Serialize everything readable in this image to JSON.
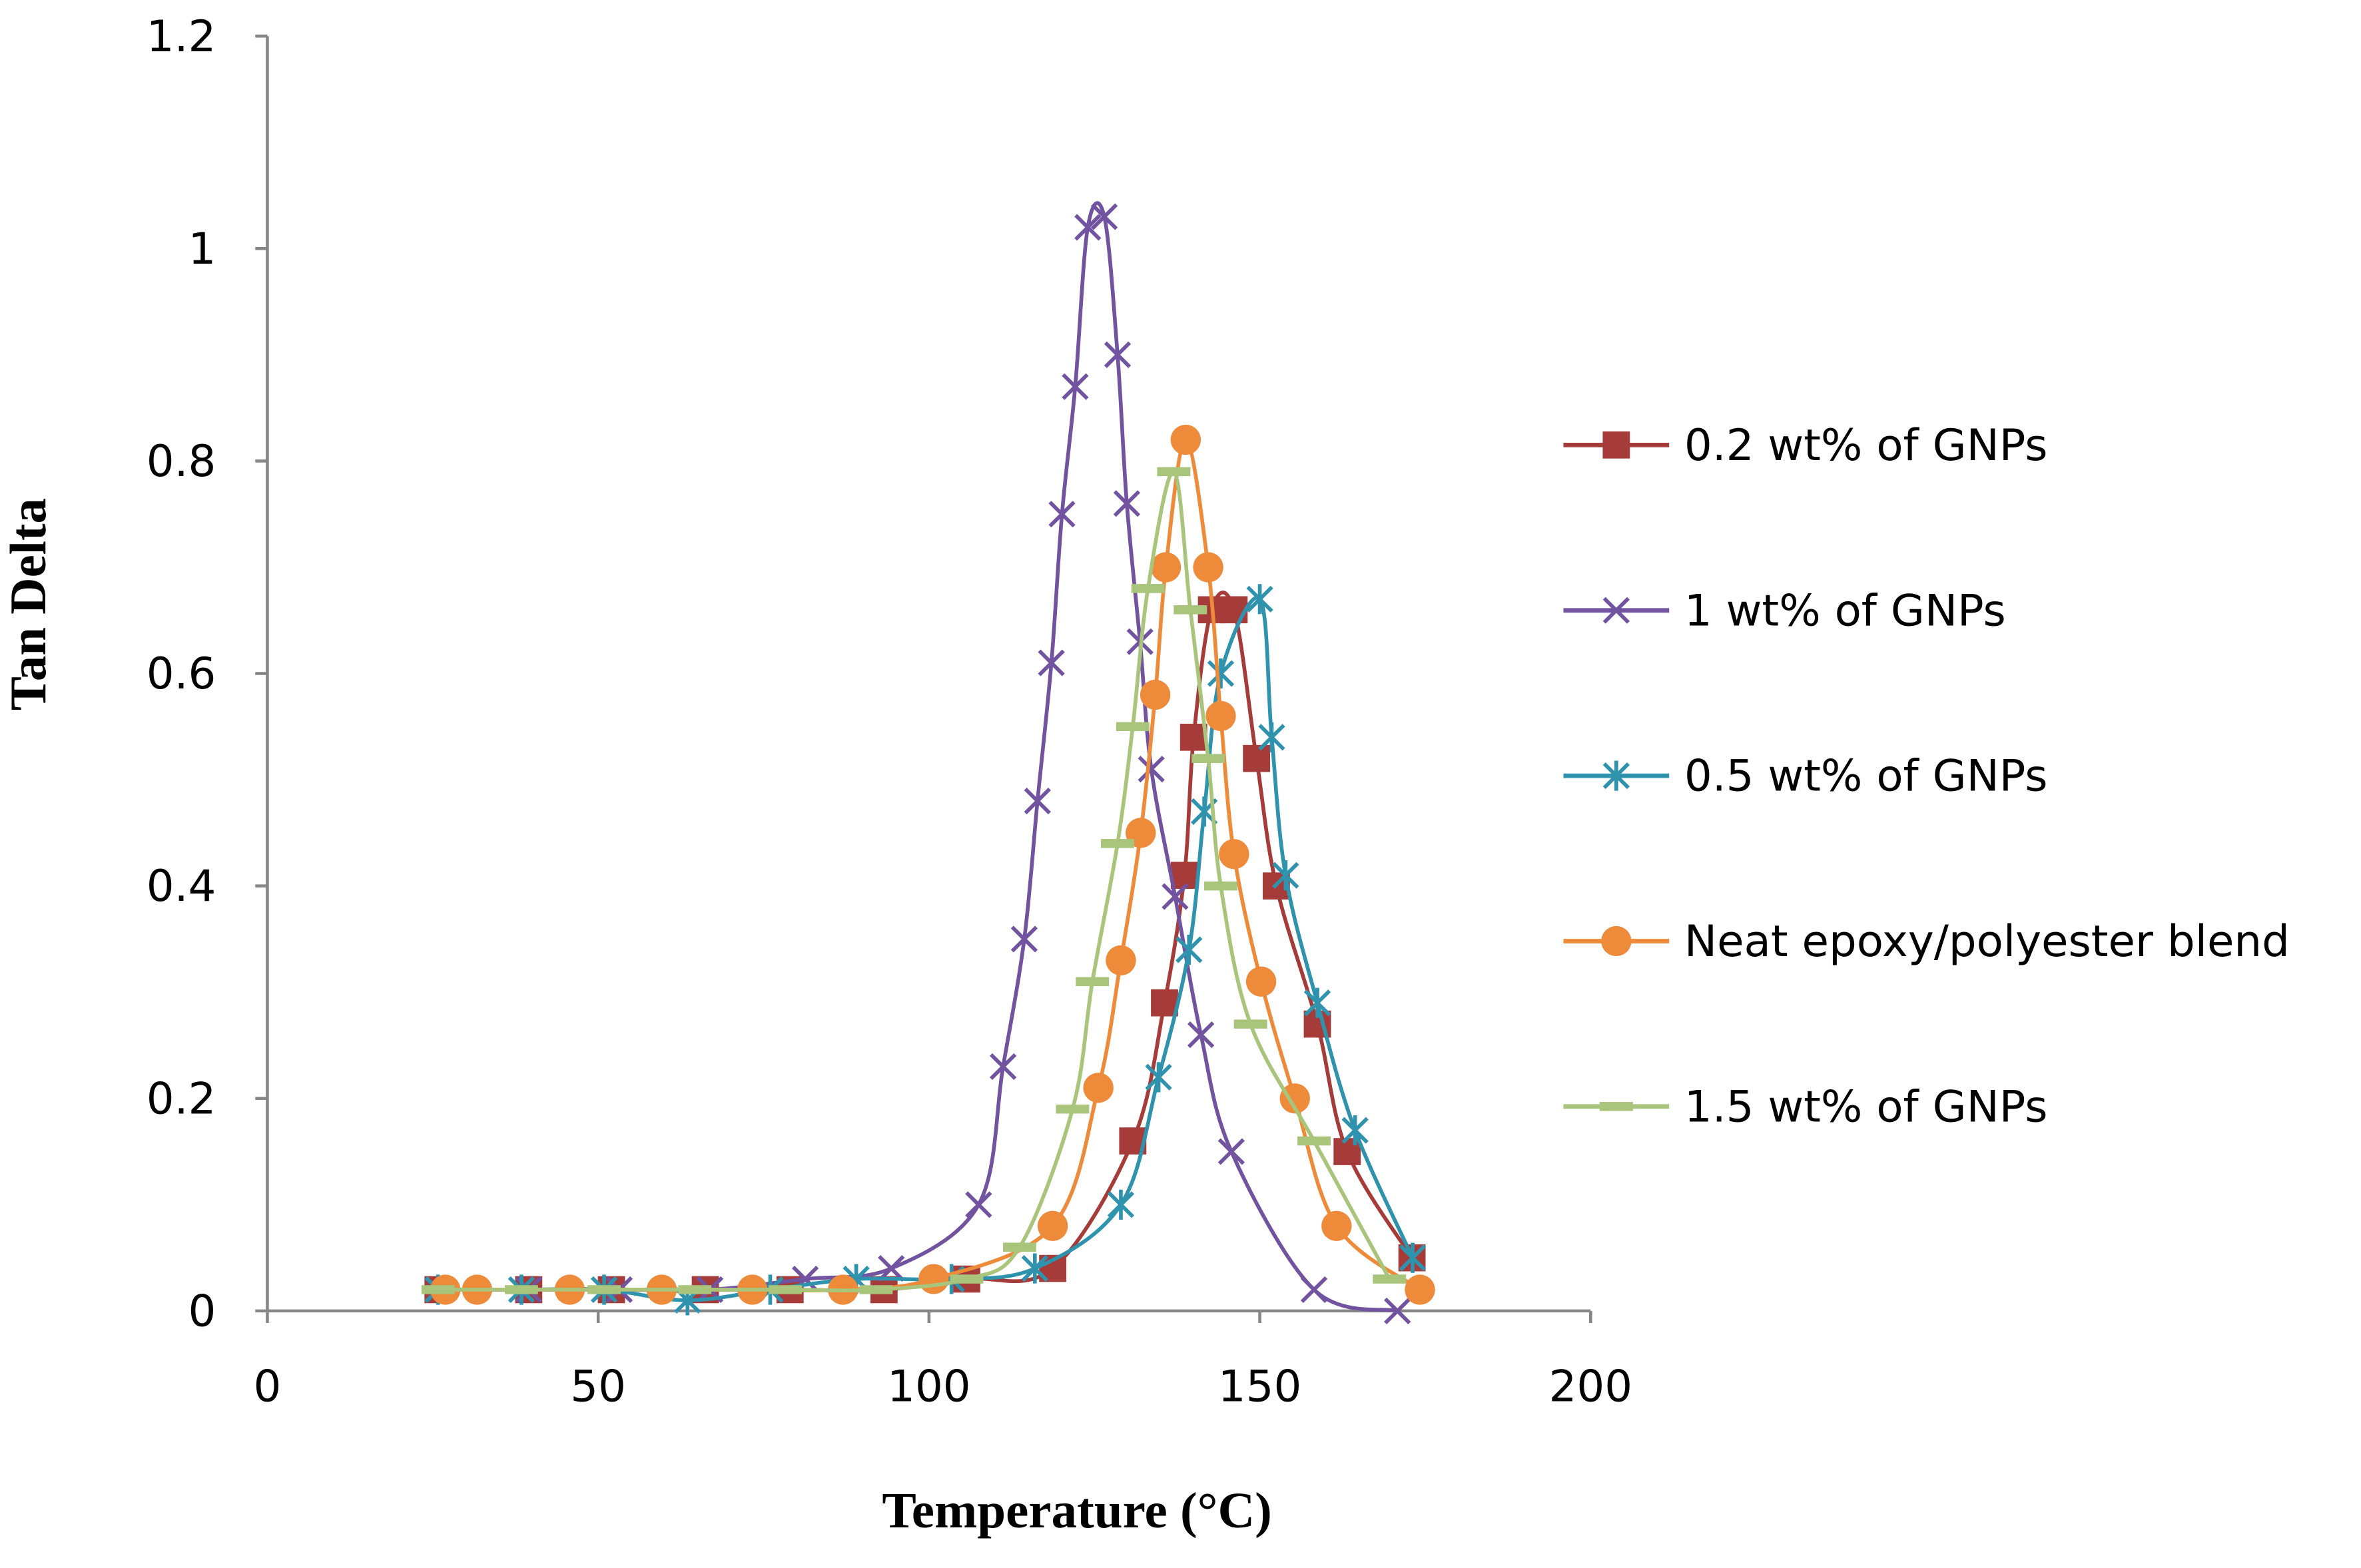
{
  "chart_data": {
    "type": "line",
    "x_label": "Temperature (°C)",
    "y_label": "Tan Delta",
    "xlim": [
      0,
      200
    ],
    "xticks": [
      0,
      50,
      100,
      150,
      200
    ],
    "ylim": [
      0,
      1.2
    ],
    "yticks": [
      0,
      0.2,
      0.4,
      0.6,
      0.8,
      1,
      1.2
    ],
    "series": [
      {
        "name": "0.2 wt% of GNPs",
        "color": "#a63c3a",
        "marker": "square",
        "x": [
          25.8,
          39.5,
          52,
          66.2,
          79,
          93.2,
          105.7,
          118.7,
          130.8,
          135.6,
          138.6,
          140,
          142.7,
          146.1,
          149.5,
          152.5,
          158.7,
          163.2,
          173
        ],
        "values": [
          0.02,
          0.02,
          0.02,
          0.02,
          0.02,
          0.02,
          0.03,
          0.04,
          0.16,
          0.29,
          0.41,
          0.54,
          0.66,
          0.66,
          0.52,
          0.4,
          0.27,
          0.15,
          0.05
        ]
      },
      {
        "name": "1 wt% of GNPs",
        "color": "#7153a0",
        "marker": "x",
        "x": [
          25.8,
          39.5,
          53.2,
          66.9,
          81.3,
          94.3,
          107.5,
          111.2,
          114.4,
          116.4,
          118.5,
          120.1,
          122.1,
          124,
          126.5,
          128.5,
          129.9,
          131.9,
          133.6,
          137.2,
          141.1,
          145.7,
          158.2,
          170.8
        ],
        "values": [
          0.02,
          0.02,
          0.02,
          0.02,
          0.03,
          0.04,
          0.1,
          0.23,
          0.35,
          0.48,
          0.61,
          0.75,
          0.87,
          1.02,
          1.03,
          0.9,
          0.76,
          0.63,
          0.51,
          0.39,
          0.26,
          0.15,
          0.02,
          0
        ]
      },
      {
        "name": "0.5 wt% of GNPs",
        "color": "#2f93ad",
        "marker": "star",
        "x": [
          25.8,
          38.4,
          50.9,
          63.5,
          76,
          89,
          103.4,
          116,
          129,
          134.7,
          139.3,
          141.6,
          144.1,
          150,
          151.8,
          153.9,
          158.7,
          164.4,
          173.1
        ],
        "values": [
          0.02,
          0.02,
          0.02,
          0.01,
          0.02,
          0.03,
          0.03,
          0.04,
          0.1,
          0.22,
          0.34,
          0.47,
          0.6,
          0.67,
          0.54,
          0.41,
          0.29,
          0.17,
          0.05
        ]
      },
      {
        "name": "Neat epoxy/polyester blend",
        "color": "#ed8b3b",
        "marker": "circle",
        "x": [
          26.9,
          31.7,
          45.7,
          59.6,
          73.3,
          87,
          100.7,
          118.7,
          125.6,
          129,
          132,
          134.2,
          135.8,
          138.8,
          142.2,
          144.1,
          146.1,
          150.2,
          155.3,
          161.6,
          174.2
        ],
        "values": [
          0.02,
          0.02,
          0.02,
          0.02,
          0.02,
          0.02,
          0.03,
          0.08,
          0.21,
          0.33,
          0.45,
          0.58,
          0.7,
          0.82,
          0.7,
          0.56,
          0.43,
          0.31,
          0.2,
          0.08,
          0.02
        ]
      },
      {
        "name": "1.5 wt% of GNPs",
        "color": "#a9c47b",
        "marker": "dash",
        "x": [
          25.8,
          38.4,
          50.9,
          64.6,
          78.3,
          92,
          105.7,
          113.7,
          121.7,
          124.7,
          128.5,
          130.8,
          133.1,
          137,
          139.5,
          142.2,
          144.1,
          148.6,
          158.2,
          169.6
        ],
        "values": [
          0.02,
          0.02,
          0.02,
          0.02,
          0.02,
          0.02,
          0.03,
          0.06,
          0.19,
          0.31,
          0.44,
          0.55,
          0.68,
          0.79,
          0.66,
          0.52,
          0.4,
          0.27,
          0.16,
          0.03
        ]
      }
    ]
  }
}
